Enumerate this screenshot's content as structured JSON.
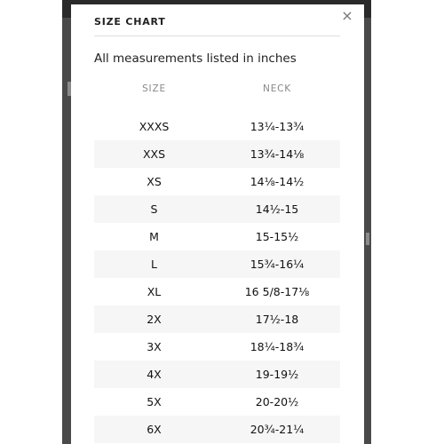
{
  "modal": {
    "title": "SIZE CHART",
    "close_glyph": "×",
    "subtitle": "All measurements listed in inches"
  },
  "table": {
    "headers": {
      "size": "SIZE",
      "neck": "NECK"
    },
    "rows": [
      {
        "size": "XXXS",
        "neck": "13¼-13¾"
      },
      {
        "size": "XXS",
        "neck": "13¾-14⅛"
      },
      {
        "size": "XS",
        "neck": "14⅛-14½"
      },
      {
        "size": "S",
        "neck": "14½-15"
      },
      {
        "size": "M",
        "neck": "15-15½"
      },
      {
        "size": "L",
        "neck": "15¾-16¼"
      },
      {
        "size": "XL",
        "neck": "16 5/8-17⅛"
      },
      {
        "size": "2X",
        "neck": "17½-18"
      },
      {
        "size": "3X",
        "neck": "18¼-18¾"
      },
      {
        "size": "4X",
        "neck": "19-19½"
      },
      {
        "size": "5X",
        "neck": "20-20½"
      },
      {
        "size": "6X",
        "neck": "20¾-21¼"
      }
    ]
  }
}
